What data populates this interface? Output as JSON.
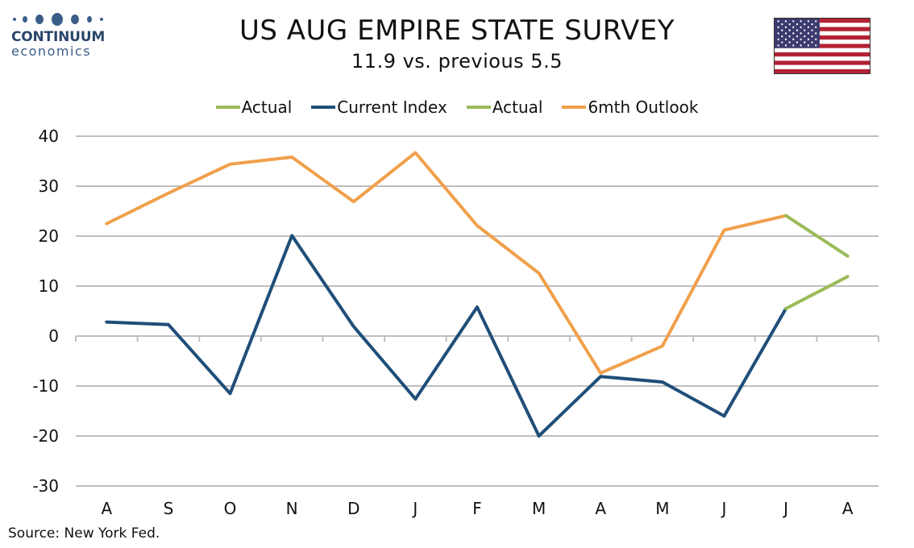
{
  "logo": {
    "name": "CONTINUUM",
    "sub": "economics"
  },
  "header": {
    "title": "US AUG EMPIRE STATE SURVEY",
    "subtitle": "11.9 vs. previous 5.5"
  },
  "flag": {
    "icon": "us-flag-icon"
  },
  "source": "Source: New York Fed.",
  "colors": {
    "current": "#1f4e79",
    "outlook": "#f0a04b",
    "actual": "#9bbb59",
    "grid": "#bfbfbf"
  },
  "legend": [
    {
      "label": "Actual",
      "color": "#9bbb59"
    },
    {
      "label": "Current Index",
      "color": "#1f4e79"
    },
    {
      "label": "Actual",
      "color": "#9bbb59"
    },
    {
      "label": "6mth Outlook",
      "color": "#f0a04b"
    }
  ],
  "chart_data": {
    "type": "line",
    "categories": [
      "A",
      "S",
      "O",
      "N",
      "D",
      "J",
      "F",
      "M",
      "A",
      "M",
      "J",
      "J",
      "A"
    ],
    "ylim": [
      -30,
      40
    ],
    "yticks": [
      -30,
      -20,
      -10,
      0,
      10,
      20,
      30,
      40
    ],
    "grid": true,
    "legend_position": "top",
    "series": [
      {
        "name": "Current Index",
        "color": "#1f4e79",
        "values": [
          2.8,
          2.3,
          -11.5,
          20.1,
          1.9,
          -12.6,
          5.8,
          -20.0,
          -8.1,
          -9.2,
          -16.0,
          5.5,
          null
        ]
      },
      {
        "name": "Actual",
        "color": "#9bbb59",
        "values": [
          null,
          null,
          null,
          null,
          null,
          null,
          null,
          null,
          null,
          null,
          null,
          5.5,
          11.9
        ]
      },
      {
        "name": "6mth Outlook",
        "color": "#f0a04b",
        "values": [
          22.5,
          28.6,
          34.4,
          35.8,
          26.9,
          36.7,
          22.1,
          12.6,
          -7.4,
          -2.0,
          21.2,
          24.1,
          null
        ]
      },
      {
        "name": "Actual",
        "color": "#9bbb59",
        "values": [
          null,
          null,
          null,
          null,
          null,
          null,
          null,
          null,
          null,
          null,
          null,
          24.1,
          16.0
        ]
      }
    ]
  }
}
